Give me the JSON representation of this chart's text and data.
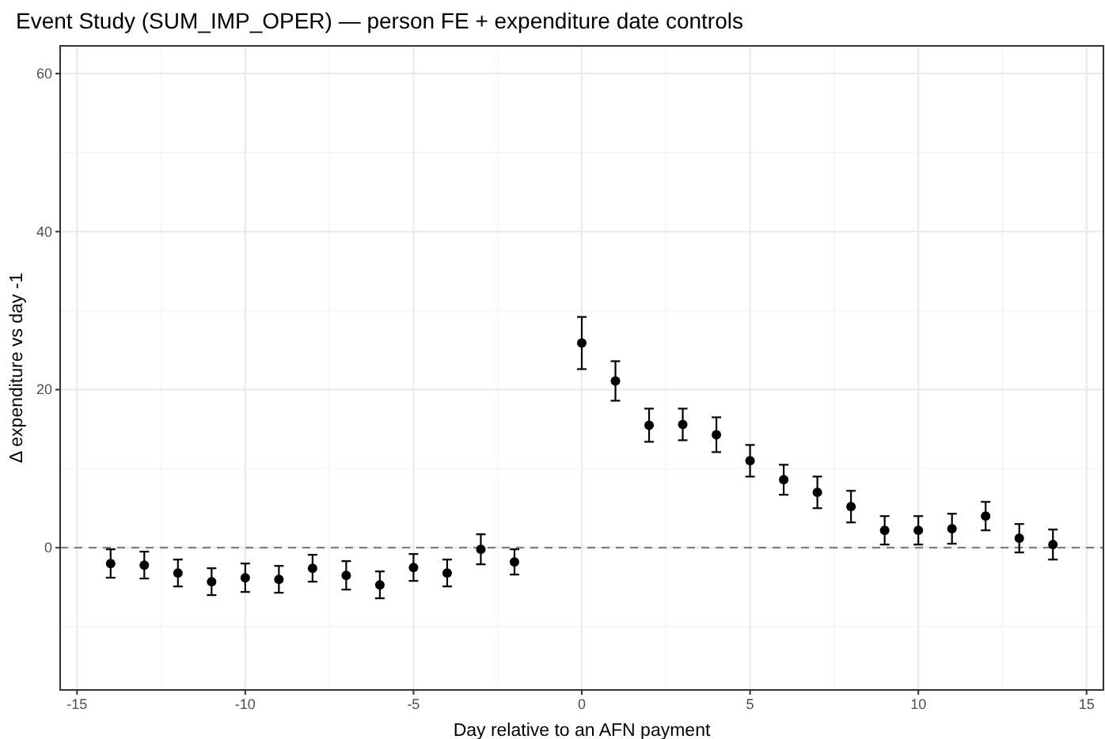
{
  "chart_data": {
    "type": "scatter",
    "title": "Event Study (SUM_IMP_OPER) — person FE + expenditure date controls",
    "xlabel": "Day relative to an AFN payment",
    "ylabel": "Δ expenditure vs day -1",
    "x": [
      -14,
      -13,
      -12,
      -11,
      -10,
      -9,
      -8,
      -7,
      -6,
      -5,
      -4,
      -3,
      -2,
      0,
      1,
      2,
      3,
      4,
      5,
      6,
      7,
      8,
      9,
      10,
      11,
      12,
      13,
      14
    ],
    "series": [
      {
        "color": "#000000",
        "values": [
          -2.0,
          -2.2,
          -3.2,
          -4.3,
          -3.8,
          -4.0,
          -2.6,
          -3.5,
          -4.7,
          -2.5,
          -3.2,
          -0.2,
          -1.8,
          25.9,
          21.1,
          15.5,
          15.6,
          14.3,
          11.0,
          8.6,
          7.0,
          5.2,
          2.2,
          2.2,
          2.4,
          4.0,
          1.2,
          0.4
        ],
        "errors": [
          1.8,
          1.7,
          1.7,
          1.7,
          1.8,
          1.7,
          1.7,
          1.8,
          1.7,
          1.7,
          1.7,
          1.9,
          1.6,
          3.3,
          2.5,
          2.1,
          2.0,
          2.2,
          2.0,
          1.9,
          2.0,
          2.0,
          1.8,
          1.8,
          1.9,
          1.8,
          1.8,
          1.9
        ]
      }
    ],
    "xlim": [
      -15.5,
      15.5
    ],
    "ylim": [
      -18,
      63.5
    ],
    "xticks": [
      -15,
      -10,
      -5,
      0,
      5,
      10,
      15
    ],
    "yticks": [
      0,
      20,
      40,
      60
    ],
    "grid": true,
    "marker": "circle",
    "ref_lines": [
      {
        "axis": "y",
        "value": 0,
        "color": "#808080",
        "line_style": "dashed"
      }
    ]
  }
}
